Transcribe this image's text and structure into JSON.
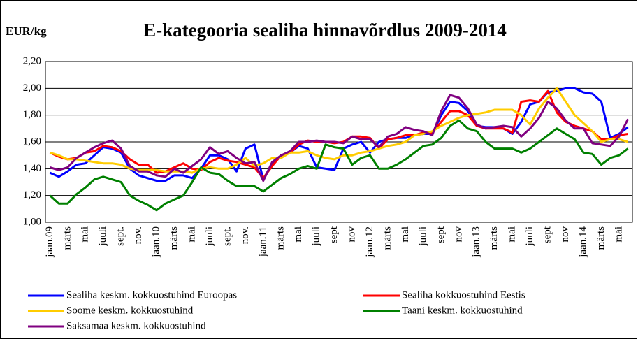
{
  "chart_data": {
    "type": "line",
    "title": "E-kategooria sealiha hinnavõrdlus 2009-2014",
    "y_label": "EUR/kg",
    "categories": [
      "jaan.09",
      null,
      "märts",
      null,
      "mai",
      null,
      "juuli",
      null,
      "sept.",
      null,
      "nov.",
      null,
      "jaan.10",
      null,
      "märts",
      null,
      "mai",
      null,
      "juuli",
      null,
      "sept.",
      null,
      "nov.",
      null,
      "jaan.11",
      null,
      "märts",
      null,
      "mai",
      null,
      "juuli",
      null,
      "sept",
      null,
      "nov",
      null,
      "jaan.12",
      null,
      "märts",
      null,
      "mai",
      null,
      "juuli",
      null,
      "sept",
      null,
      "nov",
      null,
      "jaan.13",
      null,
      "märts",
      null,
      "mai",
      null,
      "juuli",
      null,
      "sept",
      null,
      "nov",
      null,
      "jaan.14",
      null,
      "märts",
      null,
      "mai",
      null
    ],
    "series": [
      {
        "name": "Sealiha keskm. kokkuostuhind Euroopas",
        "color": "#0000ff",
        "values": [
          1.37,
          1.34,
          1.38,
          1.43,
          1.44,
          1.5,
          1.56,
          1.55,
          1.52,
          1.4,
          1.35,
          1.33,
          1.31,
          1.31,
          1.35,
          1.35,
          1.33,
          1.4,
          1.5,
          1.5,
          1.47,
          1.38,
          1.55,
          1.58,
          1.32,
          1.44,
          1.5,
          1.52,
          1.57,
          1.55,
          1.41,
          1.4,
          1.39,
          1.55,
          1.58,
          1.6,
          1.52,
          1.6,
          1.62,
          1.63,
          1.63,
          1.65,
          1.66,
          1.66,
          1.8,
          1.9,
          1.89,
          1.83,
          1.72,
          1.71,
          1.71,
          1.7,
          1.66,
          1.75,
          1.88,
          1.9,
          1.97,
          1.98,
          2.0,
          2.0,
          1.97,
          1.96,
          1.9,
          1.63,
          1.66,
          1.71
        ]
      },
      {
        "name": "Sealiha kokkuostuhind Eestis",
        "color": "#ff0000",
        "values": [
          1.52,
          1.49,
          1.47,
          1.48,
          1.52,
          1.53,
          1.57,
          1.56,
          1.53,
          1.47,
          1.43,
          1.43,
          1.37,
          1.38,
          1.41,
          1.44,
          1.4,
          1.39,
          1.45,
          1.48,
          1.46,
          1.45,
          1.43,
          1.41,
          1.33,
          1.42,
          1.5,
          1.52,
          1.58,
          1.61,
          1.6,
          1.6,
          1.59,
          1.6,
          1.64,
          1.64,
          1.63,
          1.55,
          1.62,
          1.63,
          1.65,
          1.65,
          1.67,
          1.67,
          1.75,
          1.83,
          1.83,
          1.8,
          1.72,
          1.7,
          1.7,
          1.7,
          1.67,
          1.9,
          1.91,
          1.9,
          1.98,
          1.82,
          1.75,
          1.72,
          1.7,
          1.68,
          1.62,
          1.62,
          1.65,
          1.66
        ]
      },
      {
        "name": "Soome keskm. kokkuostuhind",
        "color": "#ffcc00",
        "values": [
          1.52,
          1.5,
          1.47,
          1.47,
          1.46,
          1.45,
          1.44,
          1.44,
          1.43,
          1.4,
          1.39,
          1.39,
          1.39,
          1.38,
          1.38,
          1.38,
          1.37,
          1.4,
          1.41,
          1.4,
          1.4,
          1.43,
          1.48,
          1.42,
          1.44,
          1.48,
          1.48,
          1.52,
          1.52,
          1.53,
          1.5,
          1.48,
          1.47,
          1.5,
          1.5,
          1.52,
          1.53,
          1.55,
          1.57,
          1.58,
          1.6,
          1.65,
          1.66,
          1.68,
          1.72,
          1.75,
          1.78,
          1.8,
          1.81,
          1.82,
          1.84,
          1.84,
          1.84,
          1.8,
          1.73,
          1.85,
          1.93,
          2.0,
          1.9,
          1.8,
          1.74,
          1.68,
          1.6,
          1.62,
          1.62,
          1.6
        ]
      },
      {
        "name": "Taani keskm. kokkuostuhind",
        "color": "#008000",
        "values": [
          1.2,
          1.14,
          1.14,
          1.21,
          1.26,
          1.32,
          1.34,
          1.32,
          1.3,
          1.2,
          1.16,
          1.13,
          1.09,
          1.14,
          1.17,
          1.2,
          1.3,
          1.41,
          1.37,
          1.36,
          1.31,
          1.27,
          1.27,
          1.27,
          1.23,
          1.28,
          1.33,
          1.36,
          1.4,
          1.42,
          1.4,
          1.58,
          1.56,
          1.55,
          1.43,
          1.48,
          1.5,
          1.4,
          1.4,
          1.43,
          1.47,
          1.52,
          1.57,
          1.58,
          1.63,
          1.72,
          1.76,
          1.7,
          1.68,
          1.6,
          1.55,
          1.55,
          1.55,
          1.52,
          1.55,
          1.6,
          1.65,
          1.7,
          1.66,
          1.62,
          1.52,
          1.51,
          1.43,
          1.48,
          1.5,
          1.55
        ]
      },
      {
        "name": "Saksamaa keskm. kokkuostuhind",
        "color": "#800080",
        "values": [
          1.41,
          1.39,
          1.41,
          1.48,
          1.52,
          1.56,
          1.59,
          1.61,
          1.55,
          1.42,
          1.38,
          1.38,
          1.35,
          1.34,
          1.4,
          1.37,
          1.42,
          1.47,
          1.56,
          1.51,
          1.53,
          1.48,
          1.44,
          1.45,
          1.31,
          1.45,
          1.5,
          1.53,
          1.6,
          1.6,
          1.61,
          1.6,
          1.6,
          1.59,
          1.64,
          1.62,
          1.62,
          1.56,
          1.64,
          1.66,
          1.71,
          1.69,
          1.68,
          1.65,
          1.83,
          1.95,
          1.93,
          1.85,
          1.73,
          1.7,
          1.71,
          1.72,
          1.71,
          1.64,
          1.7,
          1.78,
          1.9,
          1.85,
          1.76,
          1.7,
          1.7,
          1.59,
          1.58,
          1.57,
          1.64,
          1.77
        ]
      }
    ],
    "ylim": [
      1.0,
      2.2
    ],
    "yticks": [
      {
        "value": 1.0,
        "label": "1,00"
      },
      {
        "value": 1.2,
        "label": "1,20"
      },
      {
        "value": 1.4,
        "label": "1,40"
      },
      {
        "value": 1.6,
        "label": "1,60"
      },
      {
        "value": 1.8,
        "label": "1,80"
      },
      {
        "value": 2.0,
        "label": "2,00"
      },
      {
        "value": 2.2,
        "label": "2,20"
      }
    ],
    "grid": true,
    "legend": "bottom"
  }
}
